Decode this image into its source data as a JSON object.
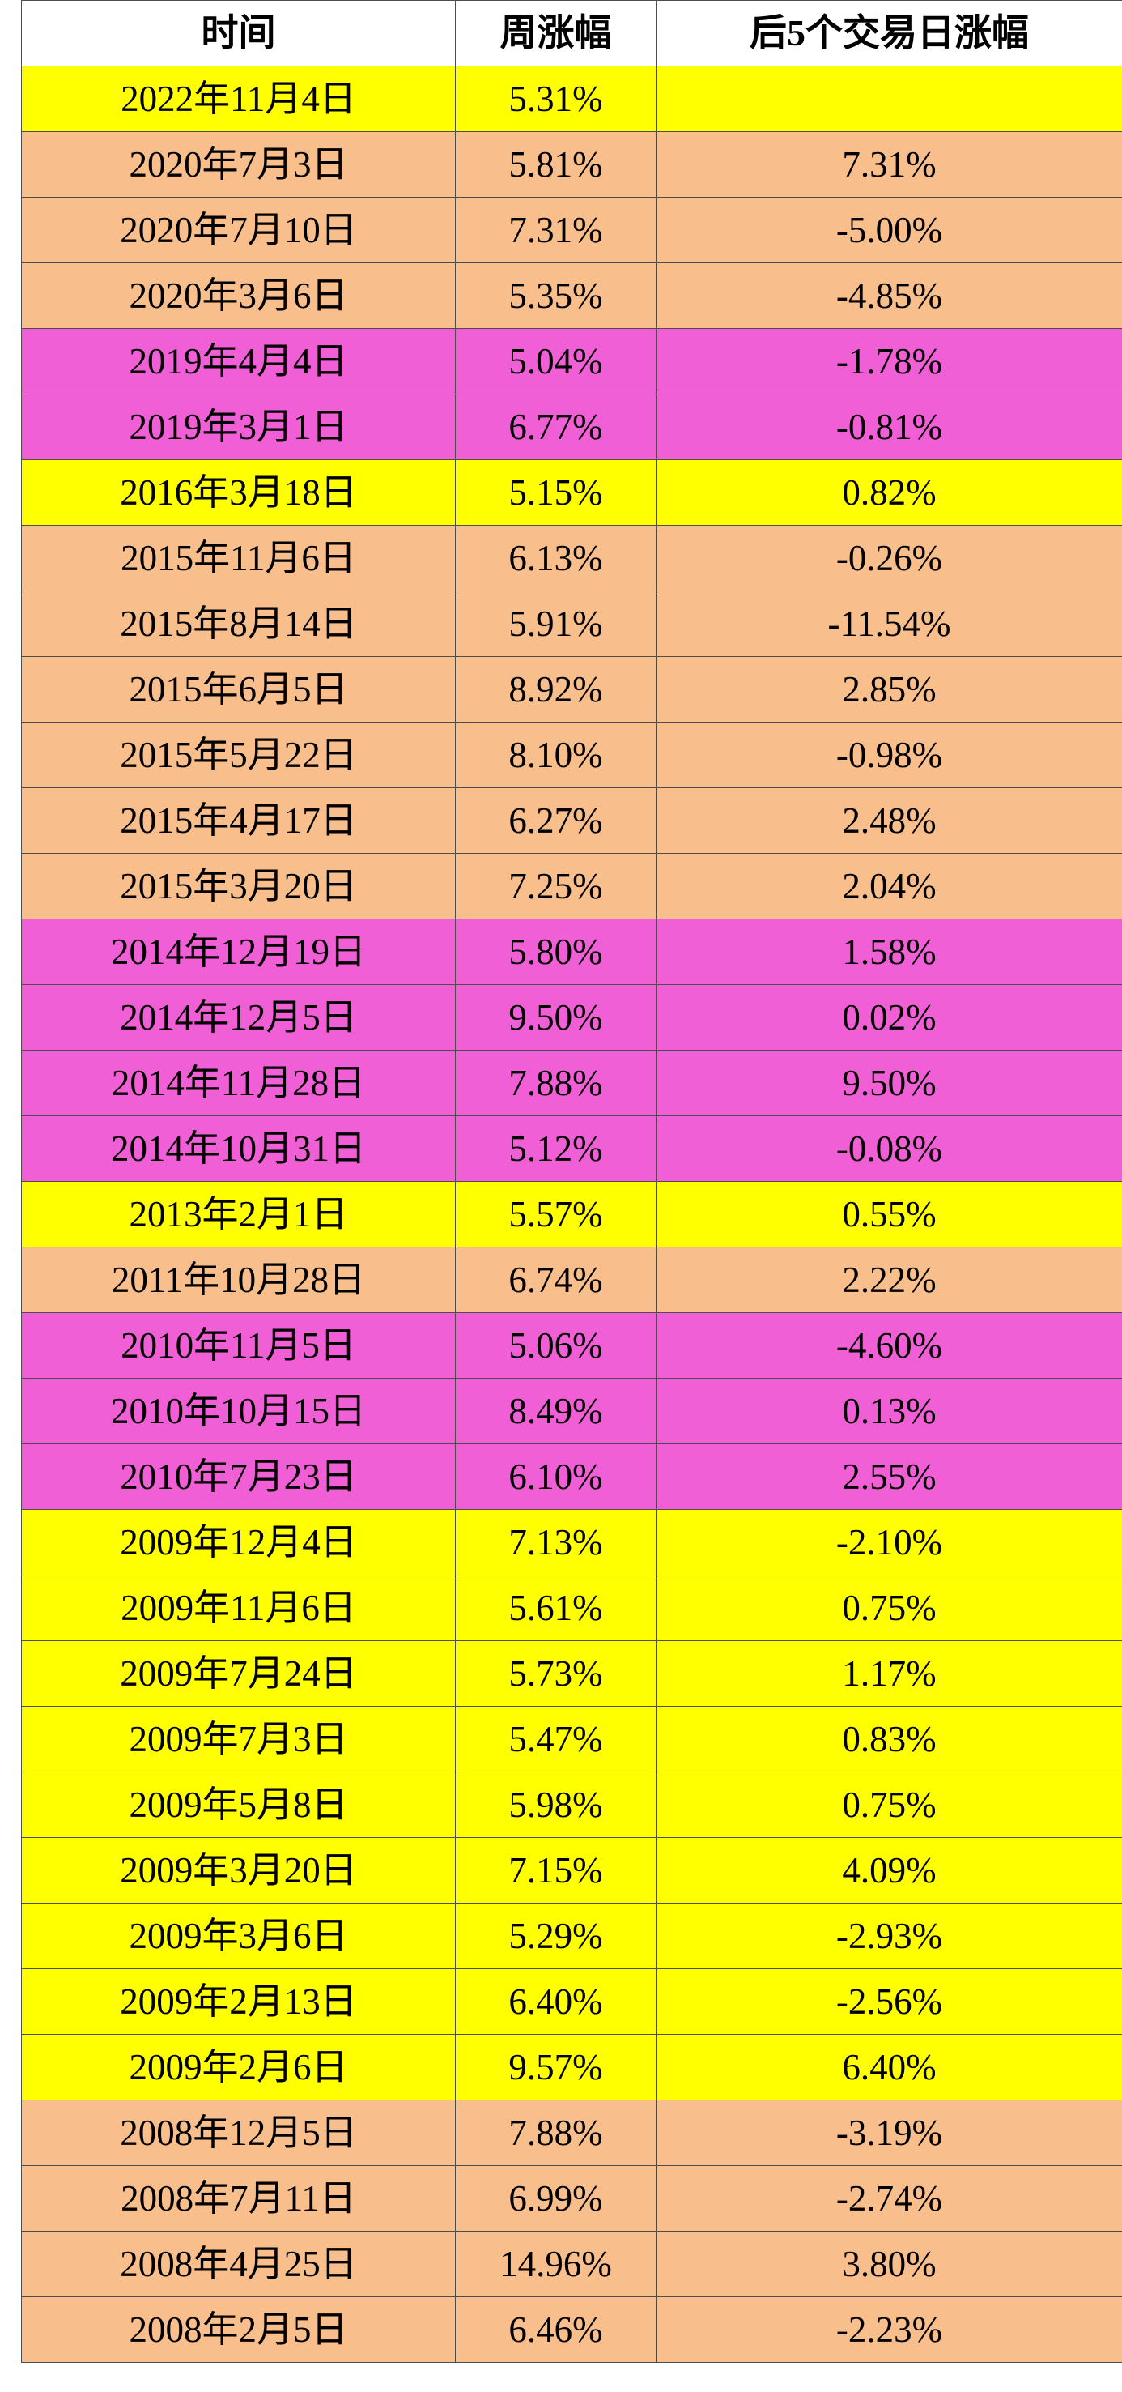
{
  "colors": {
    "yellow": "#FFFF00",
    "orange": "#F8BE8C",
    "pink": "#F05FD5",
    "header_bg": "#FFFFFF",
    "border": "#4D4D4D",
    "text": "#000000"
  },
  "chart_data": {
    "type": "table",
    "columns": [
      "时间",
      "周涨幅",
      "后5个交易日涨幅"
    ],
    "rows": [
      {
        "date": "2022年11月4日",
        "week_change": "5.31%",
        "next5_change": "",
        "color": "yellow"
      },
      {
        "date": "2020年7月3日",
        "week_change": "5.81%",
        "next5_change": "7.31%",
        "color": "orange"
      },
      {
        "date": "2020年7月10日",
        "week_change": "7.31%",
        "next5_change": "-5.00%",
        "color": "orange"
      },
      {
        "date": "2020年3月6日",
        "week_change": "5.35%",
        "next5_change": "-4.85%",
        "color": "orange"
      },
      {
        "date": "2019年4月4日",
        "week_change": "5.04%",
        "next5_change": "-1.78%",
        "color": "pink"
      },
      {
        "date": "2019年3月1日",
        "week_change": "6.77%",
        "next5_change": "-0.81%",
        "color": "pink"
      },
      {
        "date": "2016年3月18日",
        "week_change": "5.15%",
        "next5_change": "0.82%",
        "color": "yellow"
      },
      {
        "date": "2015年11月6日",
        "week_change": "6.13%",
        "next5_change": "-0.26%",
        "color": "orange"
      },
      {
        "date": "2015年8月14日",
        "week_change": "5.91%",
        "next5_change": "-11.54%",
        "color": "orange"
      },
      {
        "date": "2015年6月5日",
        "week_change": "8.92%",
        "next5_change": "2.85%",
        "color": "orange"
      },
      {
        "date": "2015年5月22日",
        "week_change": "8.10%",
        "next5_change": "-0.98%",
        "color": "orange"
      },
      {
        "date": "2015年4月17日",
        "week_change": "6.27%",
        "next5_change": "2.48%",
        "color": "orange"
      },
      {
        "date": "2015年3月20日",
        "week_change": "7.25%",
        "next5_change": "2.04%",
        "color": "orange"
      },
      {
        "date": "2014年12月19日",
        "week_change": "5.80%",
        "next5_change": "1.58%",
        "color": "pink"
      },
      {
        "date": "2014年12月5日",
        "week_change": "9.50%",
        "next5_change": "0.02%",
        "color": "pink"
      },
      {
        "date": "2014年11月28日",
        "week_change": "7.88%",
        "next5_change": "9.50%",
        "color": "pink"
      },
      {
        "date": "2014年10月31日",
        "week_change": "5.12%",
        "next5_change": "-0.08%",
        "color": "pink"
      },
      {
        "date": "2013年2月1日",
        "week_change": "5.57%",
        "next5_change": "0.55%",
        "color": "yellow"
      },
      {
        "date": "2011年10月28日",
        "week_change": "6.74%",
        "next5_change": "2.22%",
        "color": "orange"
      },
      {
        "date": "2010年11月5日",
        "week_change": "5.06%",
        "next5_change": "-4.60%",
        "color": "pink"
      },
      {
        "date": "2010年10月15日",
        "week_change": "8.49%",
        "next5_change": "0.13%",
        "color": "pink"
      },
      {
        "date": "2010年7月23日",
        "week_change": "6.10%",
        "next5_change": "2.55%",
        "color": "pink"
      },
      {
        "date": "2009年12月4日",
        "week_change": "7.13%",
        "next5_change": "-2.10%",
        "color": "yellow"
      },
      {
        "date": "2009年11月6日",
        "week_change": "5.61%",
        "next5_change": "0.75%",
        "color": "yellow"
      },
      {
        "date": "2009年7月24日",
        "week_change": "5.73%",
        "next5_change": "1.17%",
        "color": "yellow"
      },
      {
        "date": "2009年7月3日",
        "week_change": "5.47%",
        "next5_change": "0.83%",
        "color": "yellow"
      },
      {
        "date": "2009年5月8日",
        "week_change": "5.98%",
        "next5_change": "0.75%",
        "color": "yellow"
      },
      {
        "date": "2009年3月20日",
        "week_change": "7.15%",
        "next5_change": "4.09%",
        "color": "yellow"
      },
      {
        "date": "2009年3月6日",
        "week_change": "5.29%",
        "next5_change": "-2.93%",
        "color": "yellow"
      },
      {
        "date": "2009年2月13日",
        "week_change": "6.40%",
        "next5_change": "-2.56%",
        "color": "yellow"
      },
      {
        "date": "2009年2月6日",
        "week_change": "9.57%",
        "next5_change": "6.40%",
        "color": "yellow"
      },
      {
        "date": "2008年12月5日",
        "week_change": "7.88%",
        "next5_change": "-3.19%",
        "color": "orange"
      },
      {
        "date": "2008年7月11日",
        "week_change": "6.99%",
        "next5_change": "-2.74%",
        "color": "orange"
      },
      {
        "date": "2008年4月25日",
        "week_change": "14.96%",
        "next5_change": "3.80%",
        "color": "orange"
      },
      {
        "date": "2008年2月5日",
        "week_change": "6.46%",
        "next5_change": "-2.23%",
        "color": "orange"
      }
    ]
  }
}
